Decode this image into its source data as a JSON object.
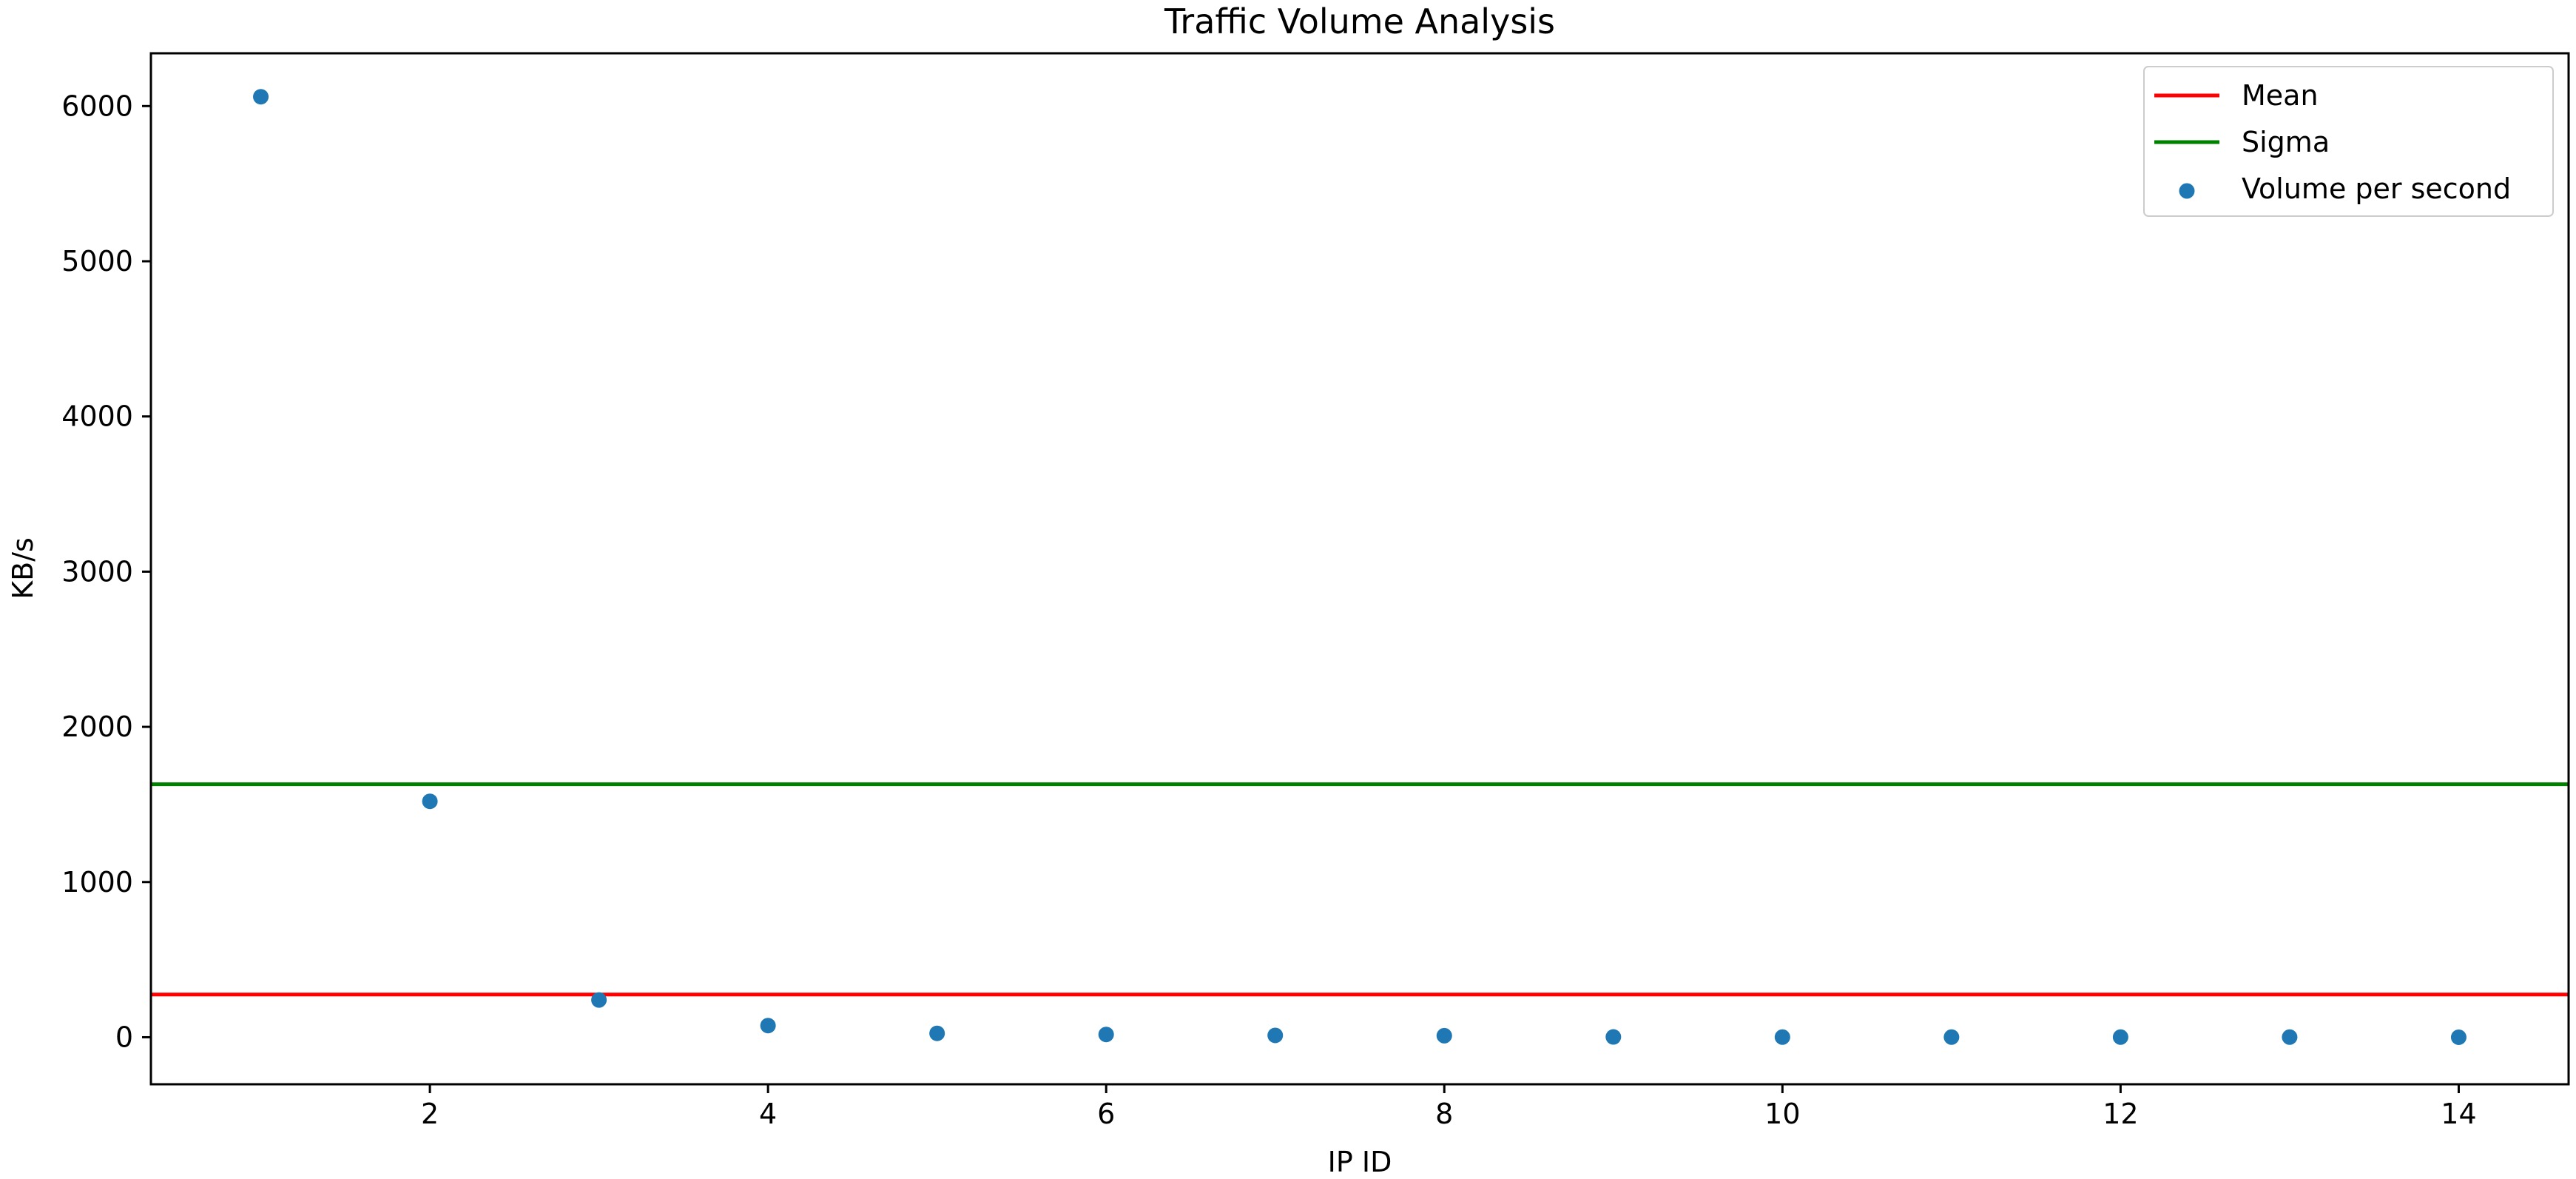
{
  "chart_data": {
    "type": "scatter",
    "title": "Traffic Volume Analysis",
    "xlabel": "IP ID",
    "ylabel": "KB/s",
    "xlim": [
      0.35,
      14.65
    ],
    "ylim": [
      -303,
      6340
    ],
    "xticks": [
      2,
      4,
      6,
      8,
      10,
      12,
      14
    ],
    "yticks": [
      0,
      1000,
      2000,
      3000,
      4000,
      5000,
      6000
    ],
    "grid": false,
    "legend_position": "top-right",
    "legend": [
      {
        "label": "Mean",
        "kind": "line",
        "color": "#ff0000"
      },
      {
        "label": "Sigma",
        "kind": "line",
        "color": "#008000"
      },
      {
        "label": "Volume per second",
        "kind": "marker",
        "color": "#1f77b4"
      }
    ],
    "series": [
      {
        "name": "Volume per second",
        "color": "#1f77b4",
        "points": [
          {
            "x": 1,
            "y": 6060
          },
          {
            "x": 2,
            "y": 1520
          },
          {
            "x": 3,
            "y": 240
          },
          {
            "x": 4,
            "y": 75
          },
          {
            "x": 5,
            "y": 25
          },
          {
            "x": 6,
            "y": 18
          },
          {
            "x": 7,
            "y": 12
          },
          {
            "x": 8,
            "y": 10
          },
          {
            "x": 9,
            "y": 2
          },
          {
            "x": 10,
            "y": 1
          },
          {
            "x": 11,
            "y": 1
          },
          {
            "x": 12,
            "y": 1
          },
          {
            "x": 13,
            "y": 1
          },
          {
            "x": 14,
            "y": 0
          }
        ]
      }
    ],
    "reference_lines": [
      {
        "name": "Mean",
        "y": 275,
        "color": "#ff0000"
      },
      {
        "name": "Sigma",
        "y": 1630,
        "color": "#008000"
      }
    ]
  }
}
